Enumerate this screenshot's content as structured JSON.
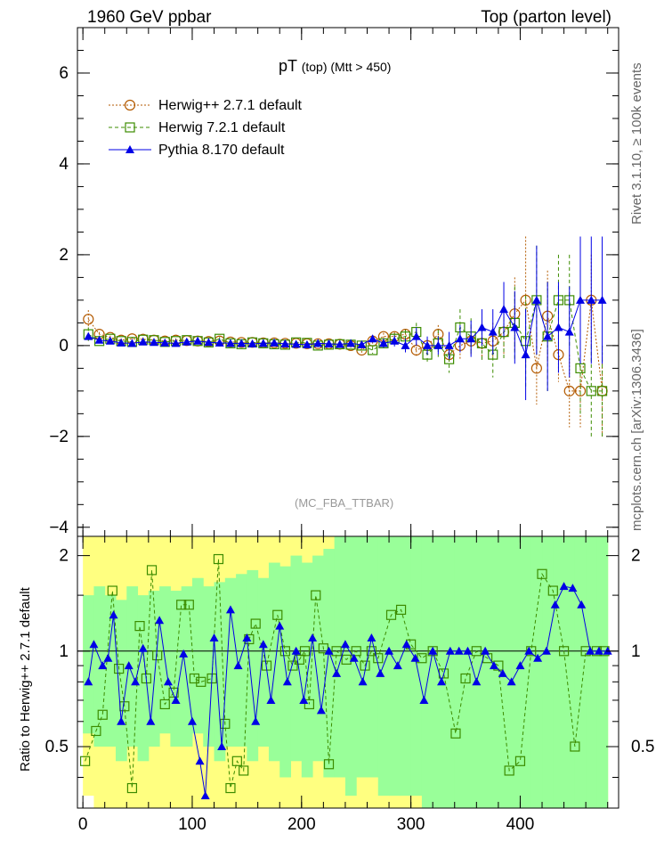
{
  "header": {
    "left": "1960 GeV ppbar",
    "right": "Top (parton level)"
  },
  "side_labels": {
    "upper": "Rivet 3.1.10, ≥ 100k events",
    "lower": "mcplots.cern.ch [arXiv:1306.3436]"
  },
  "chart_data": [
    {
      "type": "line",
      "title": "pT",
      "title_sub": "(top) (Mtt > 450)",
      "watermark": "(MC_FBA_TTBAR)",
      "xlabel": "",
      "ylabel": "",
      "xlim": [
        -5,
        490
      ],
      "ylim": [
        -4.2,
        7.0
      ],
      "yticks": [
        -4,
        -2,
        0,
        2,
        4,
        6
      ],
      "ytick_labels": [
        "−4",
        "−2",
        "0",
        "2",
        "4",
        "6"
      ],
      "legend_position": "top-left",
      "series": [
        {
          "name": "Herwig++ 2.7.1 default",
          "color": "#b35a00",
          "marker": "circle-open",
          "line": "dotted",
          "x": [
            5,
            15,
            25,
            35,
            45,
            55,
            65,
            75,
            85,
            95,
            105,
            115,
            125,
            135,
            145,
            155,
            165,
            175,
            185,
            195,
            205,
            215,
            225,
            235,
            245,
            255,
            265,
            275,
            285,
            295,
            305,
            315,
            325,
            335,
            345,
            355,
            365,
            375,
            385,
            395,
            405,
            415,
            425,
            435,
            445,
            455,
            465,
            475
          ],
          "y": [
            0.58,
            0.25,
            0.18,
            0.12,
            0.15,
            0.14,
            0.12,
            0.1,
            0.12,
            0.11,
            0.1,
            0.09,
            0.1,
            0.08,
            0.07,
            0.07,
            0.06,
            0.06,
            0.05,
            0.05,
            0.04,
            0.04,
            0.04,
            0.03,
            0.0,
            -0.1,
            0.1,
            0.2,
            0.2,
            0.25,
            -0.1,
            0.0,
            0.25,
            -0.2,
            0.0,
            0.1,
            0.05,
            0.1,
            0.3,
            0.7,
            1.0,
            -0.5,
            0.65,
            -0.2,
            -1.0,
            -1.0,
            1.0,
            -1.0
          ],
          "yerr": [
            0.2,
            0.05,
            0.04,
            0.04,
            0.04,
            0.04,
            0.04,
            0.04,
            0.04,
            0.04,
            0.04,
            0.04,
            0.04,
            0.04,
            0.04,
            0.04,
            0.04,
            0.04,
            0.04,
            0.04,
            0.04,
            0.04,
            0.04,
            0.05,
            0.05,
            0.06,
            0.06,
            0.08,
            0.1,
            0.12,
            0.15,
            0.15,
            0.2,
            0.2,
            0.3,
            0.3,
            0.3,
            0.4,
            0.5,
            0.8,
            1.4,
            0.8,
            1.0,
            0.6,
            0.8,
            0.8,
            1.0,
            1.0
          ]
        },
        {
          "name": "Herwig 7.2.1 default",
          "color": "#3c8c00",
          "marker": "square-open",
          "line": "dashed",
          "x": [
            5,
            15,
            25,
            35,
            45,
            55,
            65,
            75,
            85,
            95,
            105,
            115,
            125,
            135,
            145,
            155,
            165,
            175,
            185,
            195,
            205,
            215,
            225,
            235,
            245,
            255,
            265,
            275,
            285,
            295,
            305,
            315,
            325,
            335,
            345,
            355,
            365,
            375,
            385,
            395,
            405,
            415,
            425,
            435,
            445,
            455,
            465,
            475
          ],
          "y": [
            0.25,
            0.1,
            0.15,
            0.1,
            0.08,
            0.13,
            0.12,
            0.08,
            0.1,
            0.12,
            0.1,
            0.07,
            0.15,
            0.05,
            0.03,
            0.07,
            0.05,
            0.03,
            0.02,
            0.07,
            0.06,
            0.0,
            0.02,
            0.03,
            0.02,
            0.0,
            -0.1,
            0.05,
            0.15,
            0.2,
            0.3,
            -0.2,
            0.05,
            -0.3,
            0.4,
            0.2,
            0.05,
            -0.2,
            0.3,
            0.5,
            0.1,
            1.0,
            0.2,
            1.0,
            1.0,
            -0.5,
            -1.0,
            -1.0
          ],
          "yerr": [
            0.15,
            0.05,
            0.04,
            0.04,
            0.04,
            0.04,
            0.04,
            0.04,
            0.04,
            0.04,
            0.04,
            0.04,
            0.04,
            0.04,
            0.04,
            0.04,
            0.04,
            0.04,
            0.04,
            0.04,
            0.04,
            0.04,
            0.04,
            0.05,
            0.05,
            0.06,
            0.08,
            0.1,
            0.12,
            0.15,
            0.2,
            0.2,
            0.3,
            0.3,
            0.4,
            0.4,
            0.4,
            0.5,
            0.6,
            0.8,
            1.0,
            1.2,
            1.2,
            1.0,
            1.0,
            1.0,
            1.0,
            1.0
          ]
        },
        {
          "name": "Pythia 8.170 default",
          "color": "#0000e6",
          "marker": "triangle-filled",
          "line": "solid",
          "x": [
            5,
            15,
            25,
            35,
            45,
            55,
            65,
            75,
            85,
            95,
            105,
            115,
            125,
            135,
            145,
            155,
            165,
            175,
            185,
            195,
            205,
            215,
            225,
            235,
            245,
            255,
            265,
            275,
            285,
            295,
            305,
            315,
            325,
            335,
            345,
            355,
            365,
            375,
            385,
            395,
            405,
            415,
            425,
            435,
            445,
            455,
            465,
            475
          ],
          "y": [
            0.2,
            0.12,
            0.1,
            0.06,
            0.05,
            0.08,
            0.07,
            0.06,
            0.05,
            0.08,
            0.1,
            0.07,
            0.06,
            0.05,
            0.05,
            0.04,
            0.05,
            0.06,
            0.04,
            0.03,
            0.02,
            0.05,
            0.04,
            0.03,
            0.05,
            0.02,
            0.15,
            0.05,
            0.1,
            0.0,
            0.2,
            0.0,
            0.0,
            0.0,
            0.15,
            0.15,
            0.4,
            0.3,
            0.8,
            0.4,
            -0.2,
            1.0,
            0.2,
            0.4,
            0.3,
            1.0,
            1.0,
            1.0
          ],
          "yerr": [
            0.05,
            0.04,
            0.04,
            0.04,
            0.04,
            0.04,
            0.04,
            0.04,
            0.04,
            0.04,
            0.04,
            0.04,
            0.04,
            0.04,
            0.04,
            0.04,
            0.04,
            0.04,
            0.04,
            0.04,
            0.04,
            0.04,
            0.04,
            0.05,
            0.05,
            0.06,
            0.08,
            0.1,
            0.12,
            0.15,
            0.2,
            0.2,
            0.2,
            0.3,
            0.3,
            0.4,
            0.4,
            0.5,
            0.6,
            0.8,
            1.0,
            1.2,
            1.2,
            1.0,
            1.0,
            1.4,
            1.4,
            1.4
          ]
        }
      ]
    },
    {
      "type": "line",
      "xlabel": "",
      "ylabel": "Ratio to Herwig++ 2.7.1 default",
      "xlim": [
        -5,
        490
      ],
      "ylim": [
        0.32,
        2.3
      ],
      "xticks": [
        0,
        100,
        200,
        300,
        400
      ],
      "xtick_labels": [
        "0",
        "100",
        "200",
        "300",
        "400"
      ],
      "yticks": [
        0.5,
        1,
        2
      ],
      "ytick_labels": [
        "0.5",
        "1",
        "2"
      ],
      "reference_line": 1,
      "bands": {
        "inner_color": "#99ff99",
        "outer_color": "#ffff80",
        "x": [
          5,
          15,
          25,
          35,
          45,
          55,
          65,
          75,
          85,
          95,
          105,
          115,
          125,
          135,
          145,
          155,
          165,
          175,
          185,
          195,
          205,
          215,
          225,
          235,
          245,
          255,
          265,
          275,
          285,
          295,
          305,
          315,
          325,
          335,
          345,
          355,
          365,
          375,
          385,
          395,
          405,
          415,
          425,
          435,
          445,
          455,
          465,
          475
        ],
        "inner_lo": [
          0.55,
          0.5,
          0.5,
          0.45,
          0.5,
          0.45,
          0.5,
          0.55,
          0.5,
          0.5,
          0.55,
          0.5,
          0.45,
          0.5,
          0.5,
          0.45,
          0.5,
          0.45,
          0.4,
          0.45,
          0.4,
          0.45,
          0.4,
          0.4,
          0.35,
          0.4,
          0.4,
          0.35,
          0.35,
          0.35,
          0.35,
          0.32,
          0.32,
          0.32,
          0.32,
          0.32,
          0.32,
          0.32,
          0.32,
          0.32,
          0.32,
          0.32,
          0.32,
          0.32,
          0.32,
          0.32,
          0.32,
          0.32
        ],
        "inner_hi": [
          1.5,
          1.6,
          1.5,
          1.45,
          1.6,
          1.5,
          1.55,
          1.6,
          1.55,
          1.6,
          1.7,
          1.6,
          1.65,
          1.7,
          1.75,
          1.8,
          1.7,
          1.9,
          1.85,
          2.0,
          1.9,
          2.0,
          2.1,
          2.3,
          2.3,
          2.3,
          2.3,
          2.3,
          2.3,
          2.3,
          2.3,
          2.3,
          2.3,
          2.3,
          2.3,
          2.3,
          2.3,
          2.3,
          2.3,
          2.3,
          2.3,
          2.3,
          2.3,
          2.3,
          2.3,
          2.3,
          2.3,
          2.3
        ],
        "outer_lo": [
          0.35,
          0.32,
          0.32,
          0.32,
          0.32,
          0.32,
          0.32,
          0.32,
          0.32,
          0.32,
          0.32,
          0.32,
          0.32,
          0.32,
          0.32,
          0.32,
          0.32,
          0.32,
          0.32,
          0.32,
          0.32,
          0.32,
          0.32,
          0.32,
          0.32,
          0.32,
          0.32,
          0.32,
          0.32,
          0.32,
          0.32,
          0.32,
          0.32,
          0.32,
          0.32,
          0.32,
          0.32,
          0.32,
          0.32,
          0.32,
          0.32,
          0.32,
          0.32,
          0.32,
          0.32,
          0.32,
          0.32,
          0.32
        ],
        "outer_hi": [
          2.3,
          2.3,
          2.3,
          2.3,
          2.3,
          2.3,
          2.3,
          2.3,
          2.3,
          2.3,
          2.3,
          2.3,
          2.3,
          2.3,
          2.3,
          2.3,
          2.3,
          2.3,
          2.3,
          2.3,
          2.3,
          2.3,
          2.3,
          2.3,
          2.3,
          2.3,
          2.3,
          2.3,
          2.3,
          2.3,
          2.3,
          2.3,
          2.3,
          2.3,
          2.3,
          2.3,
          2.3,
          2.3,
          2.3,
          2.3,
          2.3,
          2.3,
          2.3,
          2.3,
          2.3,
          2.3,
          2.3,
          2.3
        ]
      },
      "series": [
        {
          "name": "Herwig 7.2.1 default",
          "color": "#3c8c00",
          "marker": "square-open",
          "line": "dashed",
          "x": [
            2,
            12,
            18,
            27,
            33,
            38,
            45,
            52,
            58,
            63,
            68,
            75,
            83,
            90,
            97,
            102,
            108,
            118,
            124,
            130,
            135,
            141,
            147,
            152,
            158,
            168,
            178,
            185,
            192,
            198,
            203,
            207,
            213,
            220,
            225,
            232,
            241,
            250,
            258,
            264,
            270,
            282,
            291,
            300,
            310,
            320,
            330,
            341,
            350,
            360,
            370,
            380,
            390,
            400,
            410,
            420,
            430,
            440,
            450,
            460,
            470,
            477
          ],
          "y": [
            0.45,
            0.56,
            0.63,
            1.55,
            0.88,
            0.67,
            0.37,
            1.2,
            0.82,
            1.8,
            0.97,
            0.68,
            0.74,
            1.4,
            1.4,
            0.82,
            0.8,
            0.82,
            1.95,
            0.59,
            0.37,
            0.45,
            0.42,
            1.09,
            1.22,
            0.9,
            1.3,
            1.0,
            0.9,
            0.94,
            1.0,
            0.68,
            1.5,
            1.02,
            0.44,
            1.0,
            0.94,
            1.0,
            0.9,
            1.0,
            0.95,
            1.3,
            1.35,
            1.05,
            0.95,
            1.0,
            0.85,
            0.55,
            0.82,
            1.0,
            0.95,
            0.9,
            0.42,
            0.45,
            1.0,
            1.75,
            1.55,
            1.0,
            0.5,
            1.0,
            1.0,
            1.0
          ]
        },
        {
          "name": "Pythia 8.170 default",
          "color": "#0000e6",
          "marker": "triangle-filled",
          "line": "solid",
          "x": [
            5,
            10,
            18,
            23,
            28,
            35,
            42,
            48,
            55,
            62,
            70,
            78,
            85,
            92,
            100,
            107,
            112,
            120,
            127,
            135,
            142,
            150,
            158,
            165,
            172,
            180,
            187,
            195,
            202,
            210,
            218,
            225,
            232,
            240,
            248,
            256,
            264,
            272,
            280,
            288,
            296,
            304,
            312,
            320,
            328,
            336,
            344,
            352,
            360,
            368,
            376,
            384,
            392,
            400,
            408,
            416,
            424,
            432,
            440,
            448,
            456,
            464,
            472,
            480
          ],
          "y": [
            0.8,
            1.05,
            0.9,
            0.95,
            1.3,
            0.6,
            0.9,
            0.8,
            1.02,
            0.6,
            1.25,
            0.8,
            0.7,
            0.98,
            0.6,
            0.45,
            0.35,
            1.1,
            0.5,
            1.35,
            0.9,
            1.1,
            0.6,
            1.05,
            0.7,
            1.2,
            0.8,
            1.0,
            0.7,
            1.1,
            0.65,
            1.0,
            0.85,
            1.05,
            0.95,
            0.8,
            1.1,
            0.85,
            1.0,
            0.9,
            1.05,
            0.95,
            0.7,
            1.0,
            0.8,
            1.0,
            1.0,
            1.0,
            0.8,
            1.0,
            0.9,
            0.85,
            0.8,
            0.9,
            1.0,
            0.95,
            1.0,
            1.4,
            1.6,
            1.58,
            1.4,
            1.0,
            1.0,
            1.0
          ]
        }
      ]
    }
  ]
}
